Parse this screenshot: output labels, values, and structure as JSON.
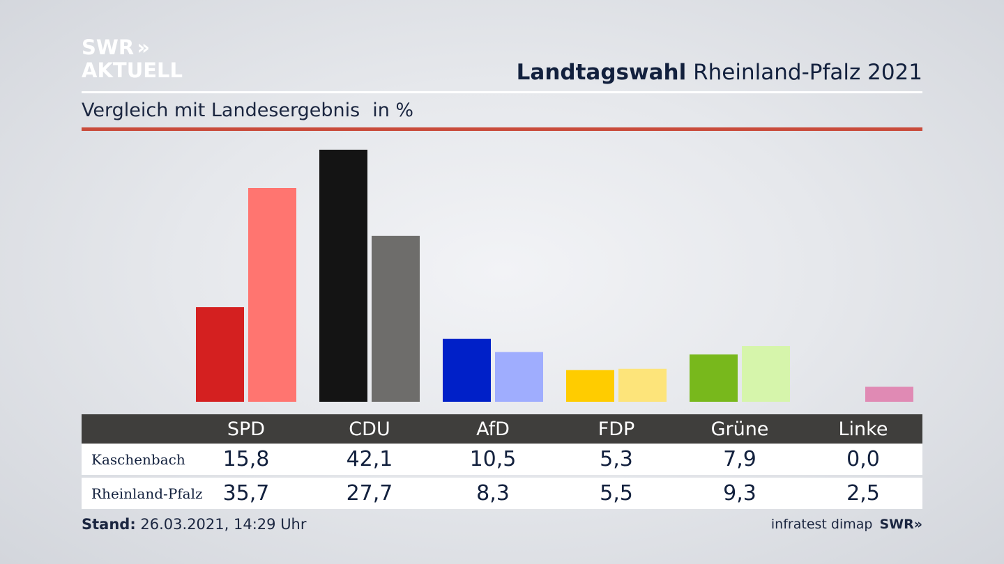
{
  "brand": {
    "line1": "SWR",
    "line1_mark": "»",
    "line2": "AKTUELL"
  },
  "header": {
    "title_bold": "Landtagswahl",
    "title_rest": "Rheinland-Pfalz 2021"
  },
  "subtitle": {
    "text": "Vergleich mit Landesergebnis",
    "unit": "in %"
  },
  "footer": {
    "stand_label": "Stand:",
    "stand_value": "26.03.2021, 14:29 Uhr",
    "source": "infratest dimap",
    "broadcaster": "SWR»"
  },
  "chart_data": {
    "type": "bar",
    "title": "Vergleich mit Landesergebnis",
    "unit": "in %",
    "categories": [
      "SPD",
      "CDU",
      "AfD",
      "FDP",
      "Grüne",
      "Linke"
    ],
    "series": [
      {
        "name": "Kaschenbach",
        "values": [
          15.8,
          42.1,
          10.5,
          5.3,
          7.9,
          0.0
        ],
        "labels": [
          "15,8",
          "42,1",
          "10,5",
          "5,3",
          "7,9",
          "0,0"
        ]
      },
      {
        "name": "Rheinland-Pfalz",
        "values": [
          35.7,
          27.7,
          8.3,
          5.5,
          9.3,
          2.5
        ],
        "labels": [
          "35,7",
          "27,7",
          "8,3",
          "5,5",
          "9,3",
          "2,5"
        ]
      }
    ],
    "colors": {
      "Kaschenbach": [
        "#d42020",
        "#141414",
        "#0020c8",
        "#ffcc00",
        "#78b81c",
        "#e08ab4"
      ],
      "Rheinland-Pfalz": [
        "#ff7570",
        "#6e6d6b",
        "#9fadfe",
        "#fde47a",
        "#d6f5ab",
        "#e08ab4"
      ]
    },
    "ylim": [
      0,
      42.1
    ],
    "grid": false,
    "legend": "table-below"
  }
}
